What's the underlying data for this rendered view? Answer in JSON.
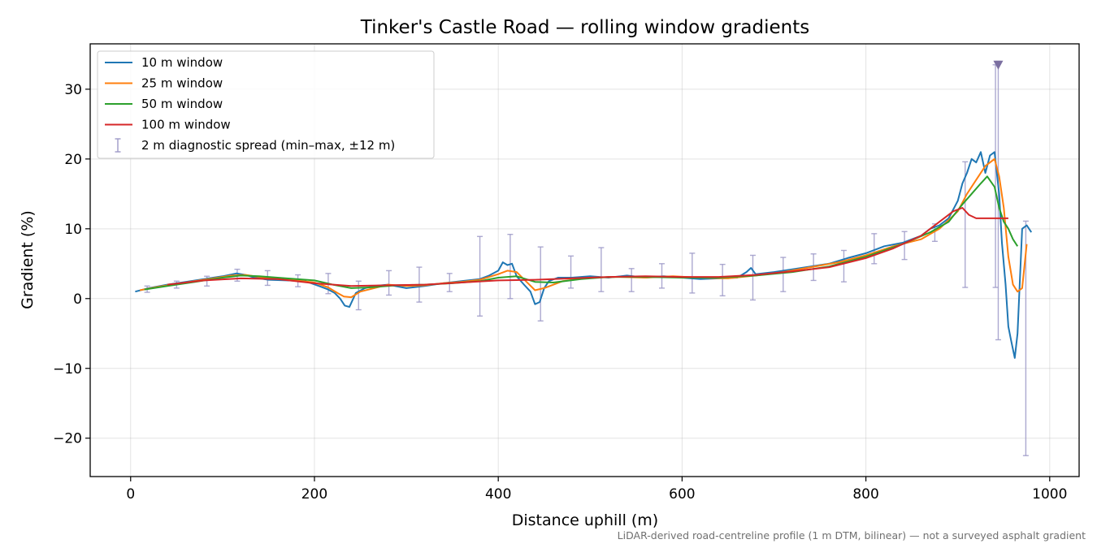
{
  "chart_data": {
    "type": "line",
    "title": "Tinker's Castle Road — rolling window gradients",
    "xlabel": "Distance uphill (m)",
    "ylabel": "Gradient (%)",
    "xlim": [
      -44,
      1032
    ],
    "ylim": [
      -25.5,
      36.5
    ],
    "xticks": [
      0,
      200,
      400,
      600,
      800,
      1000
    ],
    "xtick_labels": [
      "0",
      "200",
      "400",
      "600",
      "800",
      "1000"
    ],
    "yticks": [
      -20,
      -10,
      0,
      10,
      20,
      30
    ],
    "ytick_labels": [
      "−20",
      "−10",
      "0",
      "10",
      "20",
      "30"
    ],
    "grid": true,
    "legend_position": "top-left",
    "footnote": "LiDAR-derived road-centreline profile (1 m DTM, bilinear) — not a surveyed asphalt gradient",
    "series": [
      {
        "name": "10 m window",
        "color": "#1f77b4",
        "x": [
          5,
          20,
          40,
          60,
          80,
          100,
          115,
          125,
          135,
          150,
          170,
          190,
          205,
          215,
          222,
          228,
          233,
          238,
          245,
          255,
          265,
          280,
          300,
          320,
          340,
          360,
          380,
          390,
          400,
          405,
          410,
          415,
          420,
          428,
          435,
          440,
          445,
          450,
          455,
          465,
          480,
          500,
          520,
          540,
          560,
          580,
          600,
          620,
          640,
          660,
          670,
          675,
          680,
          700,
          720,
          740,
          760,
          780,
          800,
          820,
          840,
          860,
          870,
          880,
          890,
          900,
          905,
          910,
          915,
          920,
          925,
          930,
          935,
          940,
          945,
          948,
          952,
          955,
          958,
          962,
          965,
          970,
          975,
          980
        ],
        "y": [
          1.0,
          1.5,
          2.0,
          2.4,
          2.8,
          3.2,
          3.6,
          3.4,
          3.0,
          2.7,
          2.6,
          2.5,
          1.8,
          1.3,
          0.8,
          0.0,
          -1.0,
          -1.2,
          0.8,
          1.5,
          1.8,
          2.0,
          1.5,
          1.8,
          2.2,
          2.5,
          2.8,
          3.3,
          4.0,
          5.2,
          4.8,
          5.0,
          3.2,
          2.0,
          1.0,
          -0.8,
          -0.5,
          1.5,
          2.5,
          3.0,
          3.0,
          3.2,
          3.0,
          3.3,
          3.0,
          3.2,
          3.0,
          2.8,
          2.9,
          3.0,
          3.8,
          4.4,
          3.5,
          3.8,
          4.2,
          4.6,
          5.0,
          5.8,
          6.5,
          7.5,
          8.0,
          9.0,
          10.0,
          10.5,
          11.5,
          14.0,
          16.5,
          18.0,
          20.0,
          19.5,
          21.0,
          18.0,
          20.5,
          21.0,
          15.0,
          8.0,
          2.0,
          -4.0,
          -6.0,
          -8.5,
          -5.0,
          10.0,
          10.5,
          9.5
        ]
      },
      {
        "name": "25 m window",
        "color": "#ff7f0e",
        "x": [
          10,
          30,
          50,
          70,
          90,
          110,
          125,
          140,
          160,
          180,
          200,
          215,
          225,
          232,
          240,
          250,
          265,
          280,
          300,
          320,
          340,
          360,
          380,
          400,
          410,
          420,
          430,
          440,
          450,
          470,
          500,
          530,
          560,
          590,
          620,
          650,
          680,
          710,
          740,
          770,
          800,
          830,
          860,
          880,
          900,
          910,
          920,
          930,
          940,
          945,
          950,
          955,
          960,
          965,
          970,
          975
        ],
        "y": [
          1.2,
          1.7,
          2.1,
          2.5,
          2.9,
          3.3,
          3.4,
          3.1,
          2.8,
          2.6,
          2.3,
          1.6,
          0.8,
          0.3,
          0.2,
          1.0,
          1.5,
          2.0,
          1.8,
          1.9,
          2.2,
          2.4,
          2.7,
          3.5,
          4.0,
          3.8,
          2.5,
          1.2,
          1.5,
          2.5,
          3.0,
          3.1,
          3.0,
          3.2,
          3.0,
          2.9,
          3.3,
          3.8,
          4.5,
          5.2,
          6.2,
          7.5,
          8.5,
          10.0,
          12.5,
          15.0,
          17.0,
          19.0,
          20.0,
          17.5,
          13.0,
          6.0,
          2.0,
          1.0,
          1.5,
          7.8
        ]
      },
      {
        "name": "50 m window",
        "color": "#2ca02c",
        "x": [
          15,
          40,
          70,
          100,
          120,
          140,
          170,
          200,
          220,
          240,
          260,
          290,
          320,
          350,
          380,
          400,
          420,
          440,
          460,
          490,
          520,
          560,
          600,
          640,
          680,
          720,
          760,
          800,
          840,
          870,
          890,
          905,
          915,
          925,
          932,
          940,
          945,
          950,
          955,
          960,
          965
        ],
        "y": [
          1.3,
          1.8,
          2.4,
          3.0,
          3.3,
          3.2,
          2.9,
          2.6,
          2.0,
          1.5,
          1.6,
          1.9,
          2.0,
          2.2,
          2.5,
          3.0,
          3.2,
          2.4,
          2.3,
          2.8,
          3.1,
          3.1,
          3.0,
          3.0,
          3.3,
          3.8,
          4.6,
          6.0,
          7.8,
          9.5,
          11.0,
          13.5,
          15.0,
          16.5,
          17.5,
          16.0,
          13.0,
          11.0,
          10.0,
          8.5,
          7.5
        ]
      },
      {
        "name": "100 m window",
        "color": "#d62728",
        "x": [
          40,
          80,
          120,
          160,
          200,
          240,
          280,
          320,
          360,
          400,
          440,
          480,
          520,
          560,
          600,
          640,
          680,
          720,
          760,
          800,
          830,
          860,
          880,
          895,
          905,
          912,
          920,
          930,
          945,
          955
        ],
        "y": [
          2.0,
          2.6,
          2.9,
          2.8,
          2.2,
          1.8,
          1.9,
          2.0,
          2.3,
          2.6,
          2.7,
          2.9,
          3.1,
          3.2,
          3.1,
          3.1,
          3.4,
          3.9,
          4.5,
          5.8,
          7.2,
          9.0,
          11.0,
          12.5,
          13.0,
          12.0,
          11.5,
          11.5,
          11.5,
          11.5
        ]
      }
    ],
    "errorbars": {
      "name": "2 m diagnostic spread (min–max, ±12 m)",
      "color": "#9e9ac8",
      "points": [
        {
          "x": 18,
          "low": 0.9,
          "high": 1.8
        },
        {
          "x": 50,
          "low": 1.5,
          "high": 2.5
        },
        {
          "x": 83,
          "low": 1.8,
          "high": 3.2
        },
        {
          "x": 116,
          "low": 2.5,
          "high": 4.2
        },
        {
          "x": 149,
          "low": 1.9,
          "high": 4.0
        },
        {
          "x": 182,
          "low": 1.7,
          "high": 3.4
        },
        {
          "x": 215,
          "low": 0.7,
          "high": 3.6
        },
        {
          "x": 248,
          "low": -1.6,
          "high": 2.5
        },
        {
          "x": 281,
          "low": 0.5,
          "high": 4.0
        },
        {
          "x": 314,
          "low": -0.5,
          "high": 4.5
        },
        {
          "x": 347,
          "low": 1.0,
          "high": 3.6
        },
        {
          "x": 380,
          "low": -2.5,
          "high": 8.9
        },
        {
          "x": 413,
          "low": 0.0,
          "high": 9.2
        },
        {
          "x": 446,
          "low": -3.2,
          "high": 7.4
        },
        {
          "x": 479,
          "low": 1.5,
          "high": 6.1
        },
        {
          "x": 512,
          "low": 1.0,
          "high": 7.3
        },
        {
          "x": 545,
          "low": 1.0,
          "high": 4.3
        },
        {
          "x": 578,
          "low": 1.5,
          "high": 5.0
        },
        {
          "x": 611,
          "low": 0.8,
          "high": 6.5
        },
        {
          "x": 644,
          "low": 0.4,
          "high": 4.9
        },
        {
          "x": 677,
          "low": -0.2,
          "high": 6.2
        },
        {
          "x": 710,
          "low": 1.0,
          "high": 5.9
        },
        {
          "x": 743,
          "low": 2.6,
          "high": 6.4
        },
        {
          "x": 776,
          "low": 2.4,
          "high": 6.9
        },
        {
          "x": 809,
          "low": 5.0,
          "high": 9.3
        },
        {
          "x": 842,
          "low": 5.6,
          "high": 9.6
        },
        {
          "x": 875,
          "low": 8.2,
          "high": 10.7
        },
        {
          "x": 908,
          "low": 1.6,
          "high": 19.6
        },
        {
          "x": 941,
          "low": 1.6,
          "high": 33.5
        },
        {
          "x": 974,
          "low": -22.5,
          "high": 11.1
        }
      ],
      "markers": [
        {
          "x": 944,
          "low": -5.9,
          "high": 34.0
        }
      ]
    },
    "clip_marker": {
      "x": 944,
      "y": 33.5,
      "shape": "triangle-down",
      "color": "#7b6fa0"
    }
  }
}
